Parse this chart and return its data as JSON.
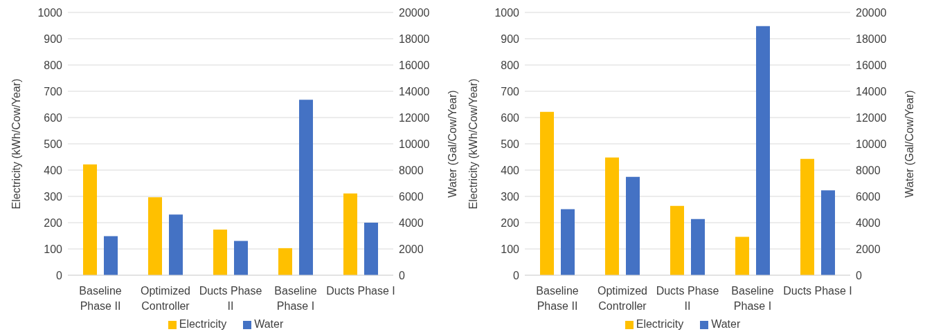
{
  "chart_data": [
    {
      "type": "bar",
      "categories": [
        "Baseline Phase II",
        "Optimized Controller",
        "Ducts Phase II",
        "Baseline Phase I",
        "Ducts Phase I"
      ],
      "series": [
        {
          "name": "Electricity",
          "color": "#ffc000",
          "values": [
            422,
            297,
            174,
            103,
            311
          ]
        },
        {
          "name": "Water",
          "color": "#4472c4",
          "axis": "y2",
          "values": [
            2980,
            4620,
            2610,
            13360,
            4000
          ]
        }
      ],
      "ylabel": "Electricity (kWh/Cow/Year)",
      "y2label": "Water (Gal/Cow/Year)",
      "ylim": [
        0,
        1000
      ],
      "yticks": [
        0,
        100,
        200,
        300,
        400,
        500,
        600,
        700,
        800,
        900,
        1000
      ],
      "y2lim": [
        0,
        20000
      ],
      "y2ticks": [
        0,
        2000,
        4000,
        6000,
        8000,
        10000,
        12000,
        14000,
        16000,
        18000,
        20000
      ],
      "grid": "y",
      "legend": "bottom"
    },
    {
      "type": "bar",
      "categories": [
        "Baseline Phase II",
        "Optimized Controller",
        "Ducts Phase II",
        "Baseline Phase I",
        "Ducts Phase I"
      ],
      "series": [
        {
          "name": "Electricity",
          "color": "#ffc000",
          "values": [
            622,
            448,
            264,
            146,
            443
          ]
        },
        {
          "name": "Water",
          "color": "#4472c4",
          "axis": "y2",
          "values": [
            5020,
            7490,
            4270,
            18960,
            6460
          ]
        }
      ],
      "ylabel": "Electricity (kWh/Cow/Year)",
      "y2label": "Water (Gal/Cow/Year)",
      "ylim": [
        0,
        1000
      ],
      "yticks": [
        0,
        100,
        200,
        300,
        400,
        500,
        600,
        700,
        800,
        900,
        1000
      ],
      "y2lim": [
        0,
        20000
      ],
      "y2ticks": [
        0,
        2000,
        4000,
        6000,
        8000,
        10000,
        12000,
        14000,
        16000,
        18000,
        20000
      ],
      "grid": "y",
      "legend": "bottom"
    }
  ]
}
